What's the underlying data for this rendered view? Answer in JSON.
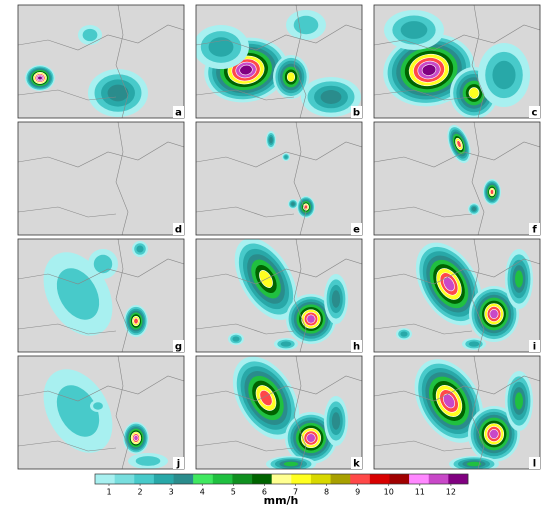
{
  "panels": [
    {
      "label": "a"
    },
    {
      "label": "b"
    },
    {
      "label": "c"
    },
    {
      "label": "d"
    },
    {
      "label": "e"
    },
    {
      "label": "f"
    },
    {
      "label": "g"
    },
    {
      "label": "h"
    },
    {
      "label": "i"
    },
    {
      "label": "j"
    },
    {
      "label": "k"
    },
    {
      "label": "l"
    }
  ],
  "colorbar": {
    "ticks": [
      1,
      2,
      3,
      4,
      5,
      6,
      7,
      8,
      9,
      10,
      11,
      12
    ],
    "label": "mm/h",
    "colors": [
      "#a8f0f0",
      "#78dede",
      "#48caca",
      "#28a8a8",
      "#2a8c8c",
      "#40e860",
      "#20c040",
      "#109020",
      "#006400",
      "#ffff90",
      "#ffff20",
      "#d8d800",
      "#a8a000",
      "#ff4848",
      "#d80000",
      "#a00000",
      "#ff88ff",
      "#c848c8",
      "#800080"
    ]
  }
}
